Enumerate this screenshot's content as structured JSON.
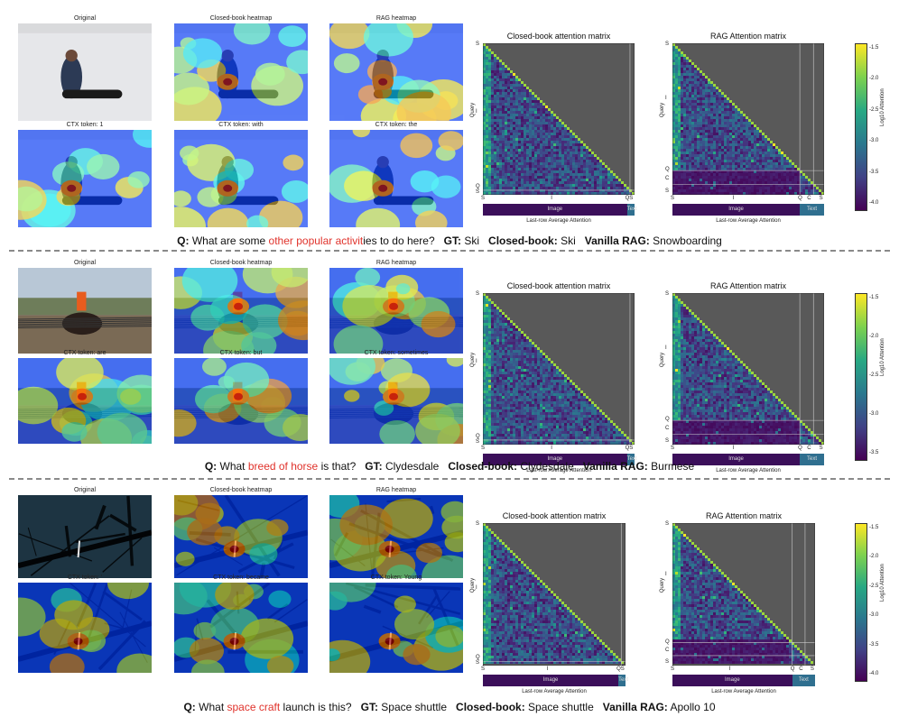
{
  "panels": [
    {
      "titles": {
        "original": "Original",
        "closed_book": "Closed-book heatmap",
        "rag": "RAG heatmap",
        "ctx1": "CTX token: 1",
        "ctx2": "CTX token: with",
        "ctx3": "CTX token: the"
      },
      "matrix_titles": {
        "closed_book": "Closed-book attention matrix",
        "rag": "RAG Attention matrix"
      },
      "closed_ticks": {
        "y": [
          "S",
          "I",
          "Q",
          "S"
        ],
        "x": [
          "S",
          "I",
          "QS"
        ]
      },
      "rag_ticks": {
        "y": [
          "S",
          "I",
          "Q",
          "C",
          "S"
        ],
        "x": [
          "S",
          "I",
          "Q",
          "C",
          "S"
        ]
      },
      "ylabel": "Query",
      "bar": {
        "image": "Image",
        "text": "Text",
        "xlabel": "Last-row Average Attention"
      },
      "cbar": {
        "label": "Log10 Attention",
        "ticks": [
          "-1.5",
          "-2.0",
          "-2.5",
          "-3.0",
          "-3.5",
          "-4.0"
        ]
      },
      "caption": {
        "q_label": "Q:",
        "q_pre": "What are some ",
        "q_hl": "other popular activit",
        "q_post": "ies to do here?",
        "gt_label": "GT:",
        "gt": "Ski",
        "cb_label": "Closed-book:",
        "cb": "Ski",
        "rag_label": "Vanilla RAG:",
        "rag": "Snowboarding"
      }
    },
    {
      "titles": {
        "original": "Original",
        "closed_book": "Closed-book heatmap",
        "rag": "RAG heatmap",
        "ctx1": "CTX token: are",
        "ctx2": "CTX token: but",
        "ctx3": "CTX token: sometimes"
      },
      "matrix_titles": {
        "closed_book": "Closed-book attention matrix",
        "rag": "RAG Attention matrix"
      },
      "closed_ticks": {
        "y": [
          "S",
          "I",
          "Q",
          "S"
        ],
        "x": [
          "S",
          "I",
          "QS"
        ]
      },
      "rag_ticks": {
        "y": [
          "S",
          "I",
          "Q",
          "C",
          "S"
        ],
        "x": [
          "S",
          "I",
          "Q",
          "C",
          "S"
        ]
      },
      "ylabel": "Query",
      "bar": {
        "image": "Image",
        "text": "Text",
        "xlabel": "Last-row Average Attention"
      },
      "cbar": {
        "label": "Log10 Attention",
        "ticks": [
          "-1.5",
          "-2.0",
          "-2.5",
          "-3.0",
          "-3.5"
        ]
      },
      "caption": {
        "q_label": "Q:",
        "q_pre": "What ",
        "q_hl": "breed of horse",
        "q_post": " is that?",
        "gt_label": "GT:",
        "gt": "Clydesdale",
        "cb_label": "Closed-book:",
        "cb": "Clydesdale",
        "rag_label": "Vanilla RAG:",
        "rag": "Burmese"
      }
    },
    {
      "titles": {
        "original": "Original",
        "closed_book": "Closed-book heatmap",
        "rag": "RAG heatmap",
        "ctx1": "CTX token: '",
        "ctx2": "CTX token: became",
        "ctx3": "CTX token: Young"
      },
      "matrix_titles": {
        "closed_book": "Closed-book attention matrix",
        "rag": "RAG Attention matrix"
      },
      "closed_ticks": {
        "y": [
          "S",
          "I",
          "Q",
          "S"
        ],
        "x": [
          "S",
          "I",
          "QS"
        ]
      },
      "rag_ticks": {
        "y": [
          "S",
          "I",
          "Q",
          "C",
          "S"
        ],
        "x": [
          "S",
          "I",
          "Q",
          "C",
          "S"
        ]
      },
      "ylabel": "Query",
      "bar": {
        "image": "Image",
        "text": "Text",
        "xlabel": "Last-row Average Attention"
      },
      "cbar": {
        "label": "Log10 Attention",
        "ticks": [
          "-1.5",
          "-2.0",
          "-2.5",
          "-3.0",
          "-3.5",
          "-4.0"
        ]
      },
      "caption": {
        "q_label": "Q:",
        "q_pre": "What ",
        "q_hl": "space craft",
        "q_post": " launch is this?",
        "gt_label": "GT:",
        "gt": "Space shuttle",
        "cb_label": "Closed-book:",
        "cb": "Space shuttle",
        "rag_label": "Vanilla RAG:",
        "rag": "Apollo 10"
      }
    }
  ],
  "colors": {
    "question_highlight": "#e0322b",
    "matrix_bg": "#595959",
    "image_bar": "#3b0f5a",
    "text_bar": "#2f6f8f"
  }
}
